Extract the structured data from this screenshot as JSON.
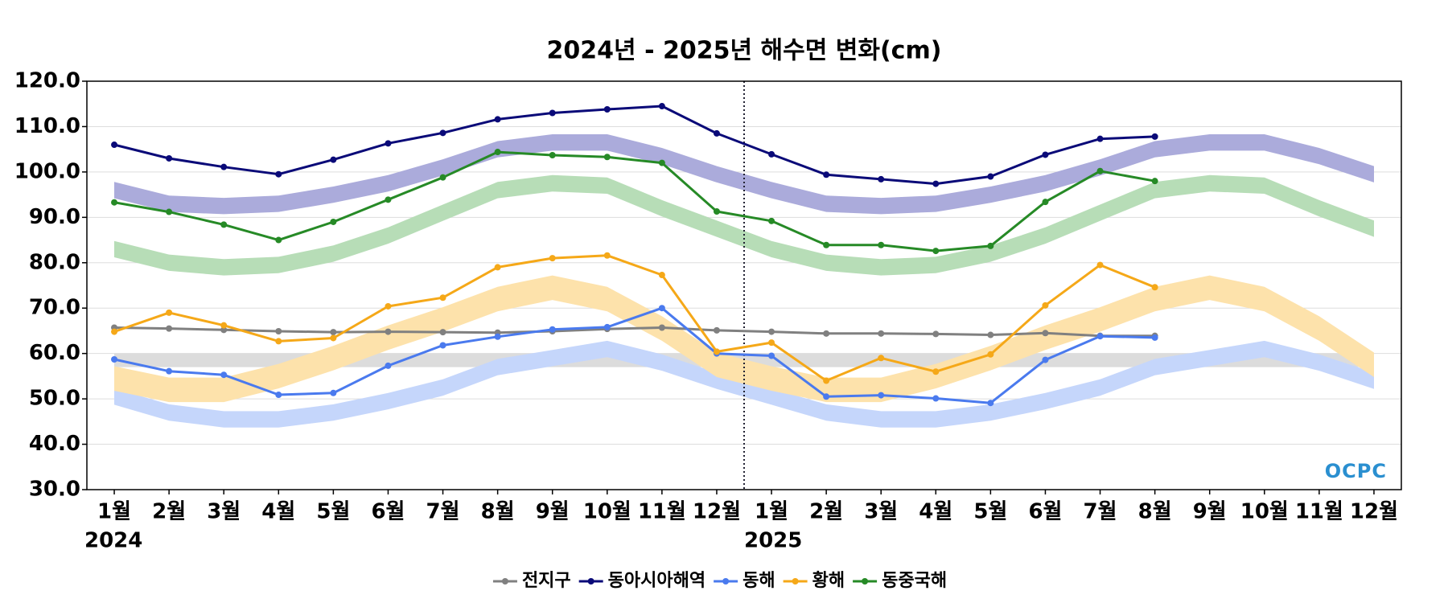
{
  "chart_data": {
    "type": "line",
    "title": "2024년 - 2025년 해수면 변화(cm)",
    "categories": [
      "1월",
      "2월",
      "3월",
      "4월",
      "5월",
      "6월",
      "7월",
      "8월",
      "9월",
      "10월",
      "11월",
      "12월",
      "1월",
      "2월",
      "3월",
      "4월",
      "5월",
      "6월",
      "7월",
      "8월",
      "9월",
      "10월",
      "11월",
      "12월"
    ],
    "groups": [
      {
        "label": "2024",
        "count": 12
      },
      {
        "label": "2025",
        "count": 12
      }
    ],
    "ylim": [
      30,
      120
    ],
    "yticks": [
      {
        "value": 30,
        "label": "30.0"
      },
      {
        "value": 40,
        "label": "40.0"
      },
      {
        "value": 50,
        "label": "50.0"
      },
      {
        "value": 60,
        "label": "60.0"
      },
      {
        "value": 70,
        "label": "70.0"
      },
      {
        "value": 80,
        "label": "80.0"
      },
      {
        "value": 90,
        "label": "90.0"
      },
      {
        "value": 100,
        "label": "100.0"
      },
      {
        "value": 110,
        "label": "110.0"
      },
      {
        "value": 120,
        "label": "120.0"
      }
    ],
    "grid": true,
    "watermark": "OCPC",
    "bands": [
      {
        "color": "#dcdcdc",
        "low": [
          57,
          57,
          57,
          57,
          57,
          57,
          57,
          57,
          57,
          57,
          57,
          57,
          57,
          57,
          57,
          57,
          57,
          57,
          57,
          57,
          57,
          57,
          57,
          57
        ],
        "high": [
          60,
          60,
          60,
          60,
          60,
          60,
          60,
          60,
          60,
          60,
          60,
          60,
          60,
          60,
          60,
          60,
          60,
          60,
          60,
          60,
          60,
          60,
          60,
          60
        ]
      },
      {
        "color": "#ababdb",
        "low": [
          94.2,
          91.2,
          90.7,
          91.2,
          93.2,
          95.7,
          99.2,
          103.2,
          104.7,
          104.7,
          101.7,
          97.7,
          94.2,
          91.2,
          90.7,
          91.2,
          93.2,
          95.7,
          99.2,
          103.2,
          104.7,
          104.7,
          101.7,
          97.7
        ],
        "high": [
          97.8,
          94.8,
          94.3,
          94.8,
          96.8,
          99.3,
          102.8,
          106.8,
          108.3,
          108.3,
          105.3,
          101.3,
          97.8,
          94.8,
          94.3,
          94.8,
          96.8,
          99.3,
          102.8,
          106.8,
          108.3,
          108.3,
          105.3,
          101.3
        ]
      },
      {
        "color": "#c5d6fb",
        "low": [
          48.7,
          45.2,
          43.7,
          43.7,
          45.2,
          47.7,
          50.7,
          55.2,
          57.2,
          59.2,
          56.2,
          52.2,
          48.7,
          45.2,
          43.7,
          43.7,
          45.2,
          47.7,
          50.7,
          55.2,
          57.2,
          59.2,
          56.2,
          52.2
        ],
        "high": [
          52.3,
          48.8,
          47.3,
          47.3,
          48.8,
          51.3,
          54.3,
          58.8,
          60.8,
          62.8,
          59.8,
          55.8,
          52.3,
          48.8,
          47.3,
          47.3,
          48.8,
          51.3,
          54.3,
          58.8,
          60.8,
          62.8,
          59.8,
          55.8
        ]
      },
      {
        "color": "#fde2ab",
        "low": [
          51.8,
          49.3,
          49.3,
          52.3,
          56.3,
          60.8,
          64.8,
          69.3,
          71.8,
          69.3,
          62.8,
          54.8,
          51.8,
          49.3,
          49.3,
          52.3,
          56.3,
          60.8,
          64.8,
          69.3,
          71.8,
          69.3,
          62.8,
          54.8
        ],
        "high": [
          57.2,
          54.7,
          54.7,
          57.7,
          61.7,
          66.2,
          70.2,
          74.7,
          77.2,
          74.7,
          68.2,
          60.2,
          57.2,
          54.7,
          54.7,
          57.7,
          61.7,
          66.2,
          70.2,
          74.7,
          77.2,
          74.7,
          68.2,
          60.2
        ]
      },
      {
        "color": "#b7ddb7",
        "low": [
          81.2,
          78.2,
          77.2,
          77.7,
          80.2,
          84.2,
          89.2,
          94.2,
          95.7,
          95.2,
          90.2,
          85.7,
          81.2,
          78.2,
          77.2,
          77.7,
          80.2,
          84.2,
          89.2,
          94.2,
          95.7,
          95.2,
          90.2,
          85.7
        ],
        "high": [
          84.8,
          81.8,
          80.8,
          81.3,
          83.8,
          87.8,
          92.8,
          97.8,
          99.3,
          98.8,
          93.8,
          89.3,
          84.8,
          81.8,
          80.8,
          81.3,
          83.8,
          87.8,
          92.8,
          97.8,
          99.3,
          98.8,
          93.8,
          89.3
        ]
      }
    ],
    "series": [
      {
        "name": "전지구",
        "color": "#808080",
        "values": [
          65.7,
          65.5,
          65.2,
          64.9,
          64.7,
          64.8,
          64.7,
          64.6,
          64.9,
          65.4,
          65.7,
          65.1,
          64.8,
          64.4,
          64.4,
          64.3,
          64.1,
          64.5,
          63.9,
          63.9,
          null,
          null,
          null,
          null
        ]
      },
      {
        "name": "동아시아해역",
        "color": "#0a0a78",
        "values": [
          106.0,
          103.0,
          101.1,
          99.5,
          102.7,
          106.3,
          108.6,
          111.6,
          113.0,
          113.8,
          114.5,
          108.5,
          103.9,
          99.4,
          98.4,
          97.4,
          99.0,
          103.8,
          107.3,
          107.8,
          null,
          null,
          null,
          null
        ]
      },
      {
        "name": "동해",
        "color": "#4a7aee",
        "values": [
          58.7,
          56.1,
          55.3,
          50.9,
          51.3,
          57.3,
          61.8,
          63.7,
          65.3,
          65.8,
          70.0,
          60.0,
          59.5,
          50.5,
          50.8,
          50.1,
          49.1,
          58.6,
          63.8,
          63.5,
          null,
          null,
          null,
          null
        ]
      },
      {
        "name": "황해",
        "color": "#f5a818",
        "values": [
          64.8,
          69.0,
          66.2,
          62.7,
          63.4,
          70.4,
          72.3,
          79.0,
          81.0,
          81.6,
          77.3,
          60.4,
          62.4,
          54.0,
          59.0,
          56.0,
          59.8,
          70.6,
          79.5,
          74.6,
          null,
          null,
          null,
          null
        ]
      },
      {
        "name": "동중국해",
        "color": "#268a26",
        "values": [
          93.3,
          91.2,
          88.4,
          85.0,
          89.0,
          93.9,
          98.8,
          104.4,
          103.7,
          103.3,
          102.0,
          91.3,
          89.2,
          83.9,
          83.9,
          82.6,
          83.7,
          93.4,
          100.2,
          98.0,
          null,
          null,
          null,
          null
        ]
      }
    ]
  }
}
